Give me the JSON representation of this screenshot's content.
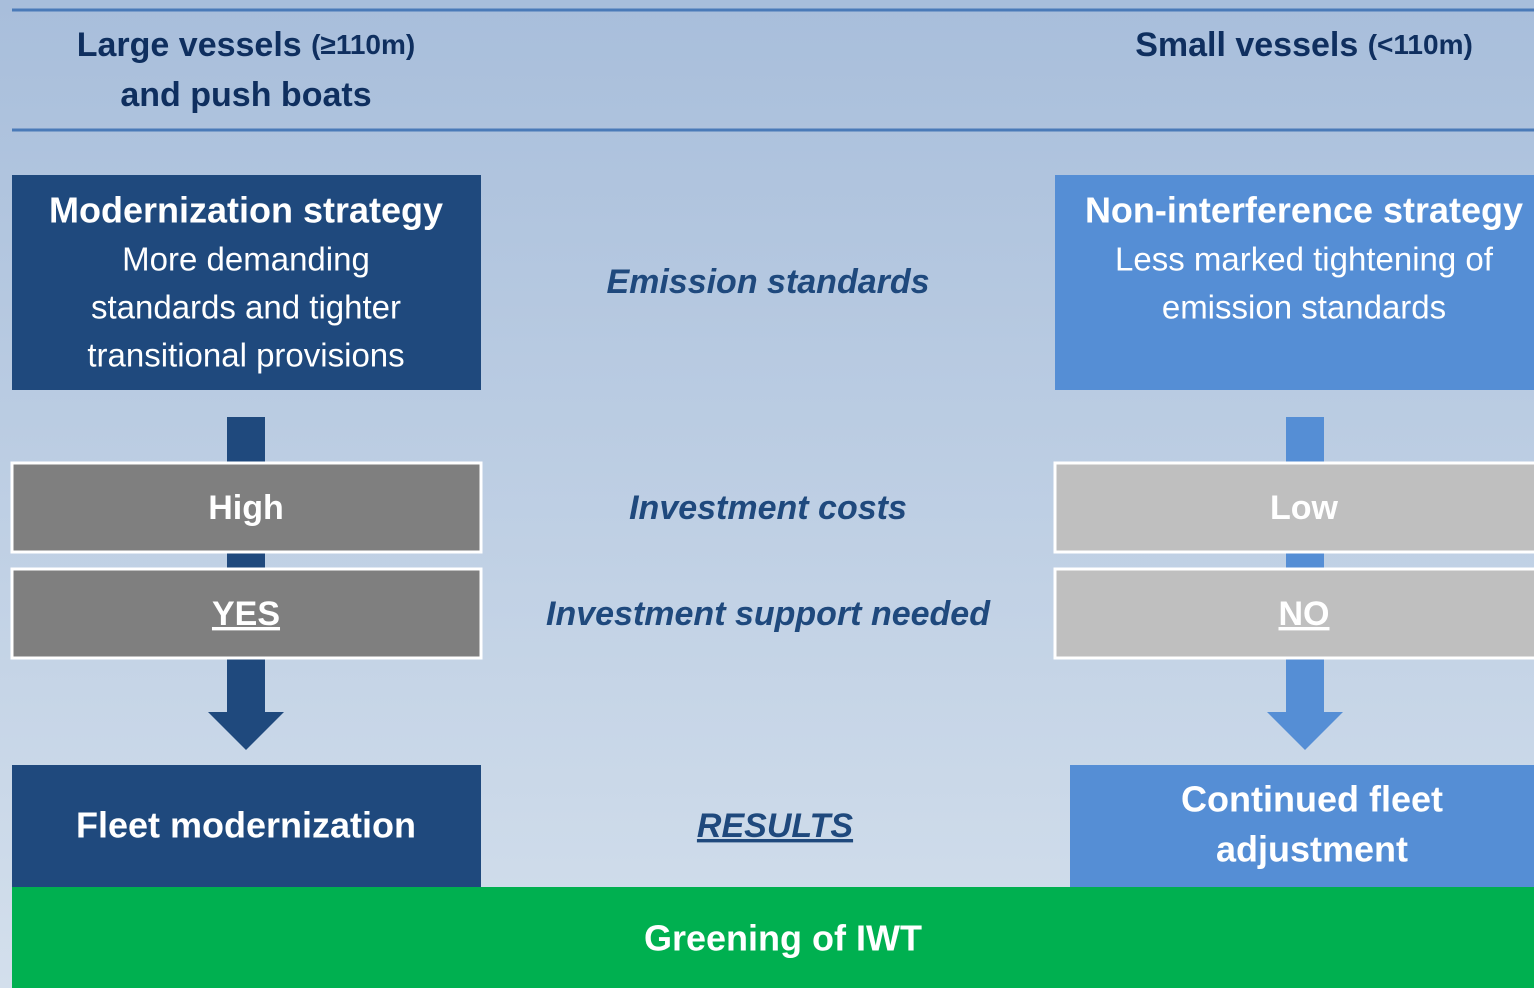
{
  "headers": {
    "left": {
      "title": "Large vessels",
      "size": "(≥110m)",
      "line2": "and push boats"
    },
    "right": {
      "title": "Small vessels",
      "size": "(<110m)"
    }
  },
  "left_column": {
    "strategy": {
      "title": "Modernization strategy",
      "lines": [
        "More demanding",
        "standards and tighter",
        "transitional provisions"
      ]
    },
    "costs": "High",
    "support": "YES",
    "result": "Fleet modernization"
  },
  "right_column": {
    "strategy": {
      "title": "Non-interference strategy",
      "lines": [
        "Less marked tightening of",
        "emission standards"
      ]
    },
    "costs": "Low",
    "support": "NO",
    "result": [
      "Continued fleet",
      "adjustment"
    ]
  },
  "criteria": {
    "emission": "Emission standards",
    "costs": "Investment costs",
    "support": "Investment support needed",
    "results": "RESULTS"
  },
  "footer": "Greening of IWT"
}
